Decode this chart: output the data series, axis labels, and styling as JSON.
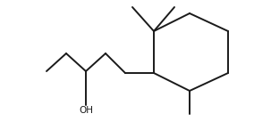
{
  "bg_color": "#ffffff",
  "line_color": "#1a1a1a",
  "line_width": 1.4,
  "oh_label": "OH",
  "oh_fontsize": 7.5,
  "figsize": [
    2.84,
    1.46
  ],
  "dpi": 100
}
